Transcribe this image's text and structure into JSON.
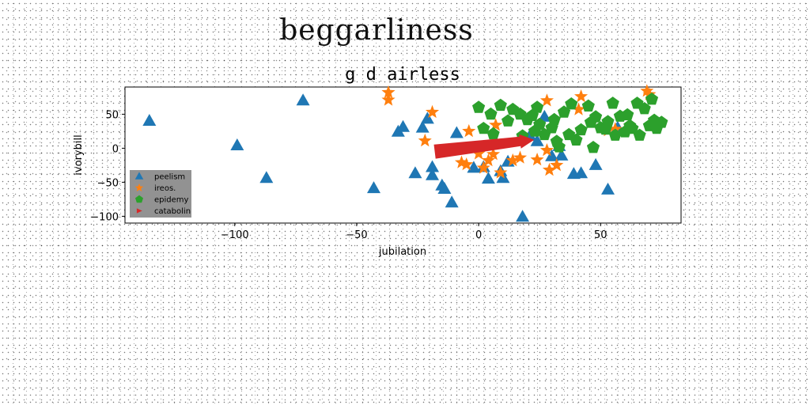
{
  "figure": {
    "suptitle": "beggarliness"
  },
  "chart_data": {
    "type": "scatter",
    "title": "g d airless",
    "xlabel": "jubilation",
    "ylabel": "ivorybill",
    "xlim": [
      -145,
      83
    ],
    "ylim": [
      -110,
      90
    ],
    "xticks": [
      -100,
      -50,
      0,
      50
    ],
    "yticks": [
      50,
      0,
      -50,
      -100
    ],
    "grid": false,
    "legend": {
      "placement": "lower-left",
      "background": "#8c8c8c"
    },
    "series": [
      {
        "name": "peelism",
        "marker": "triangle",
        "color": "#1f77b4",
        "points": [
          [
            -135,
            40
          ],
          [
            -99,
            4
          ],
          [
            -87,
            -44
          ],
          [
            -72,
            70
          ],
          [
            -43,
            -59
          ],
          [
            -33,
            24
          ],
          [
            -31,
            31
          ],
          [
            -26,
            -37
          ],
          [
            -23,
            30
          ],
          [
            -21,
            43
          ],
          [
            -19,
            -28
          ],
          [
            -19,
            -40
          ],
          [
            -15,
            -55
          ],
          [
            -14,
            -60
          ],
          [
            -11,
            -80
          ],
          [
            -9,
            22
          ],
          [
            -2,
            -29
          ],
          [
            2,
            -28
          ],
          [
            4,
            -45
          ],
          [
            9,
            -34
          ],
          [
            10,
            -44
          ],
          [
            12,
            -20
          ],
          [
            18,
            -101
          ],
          [
            21,
            18
          ],
          [
            24,
            10
          ],
          [
            27,
            46
          ],
          [
            30,
            -12
          ],
          [
            33,
            3
          ],
          [
            34,
            -11
          ],
          [
            39,
            -38
          ],
          [
            42,
            -37
          ],
          [
            48,
            -25
          ],
          [
            53,
            -61
          ],
          [
            57,
            30
          ]
        ]
      },
      {
        "name": "ireos.",
        "marker": "star",
        "color": "#ff7f0e",
        "points": [
          [
            -37,
            82
          ],
          [
            -37,
            71
          ],
          [
            -22,
            11
          ],
          [
            -19,
            53
          ],
          [
            -7,
            -21
          ],
          [
            -5,
            -24
          ],
          [
            -4,
            25
          ],
          [
            0,
            -8
          ],
          [
            2,
            -29
          ],
          [
            4,
            -18
          ],
          [
            6,
            -9
          ],
          [
            7,
            34
          ],
          [
            9,
            -36
          ],
          [
            14,
            -18
          ],
          [
            17,
            -14
          ],
          [
            24,
            -17
          ],
          [
            28,
            -3
          ],
          [
            28,
            70
          ],
          [
            29,
            -32
          ],
          [
            32,
            -25
          ],
          [
            41,
            57
          ],
          [
            42,
            76
          ],
          [
            53,
            26
          ],
          [
            56,
            28
          ],
          [
            69,
            84
          ],
          [
            70,
            79
          ]
        ]
      },
      {
        "name": "epidemy",
        "marker": "pentagon",
        "color": "#2ca02c",
        "points": [
          [
            0,
            60
          ],
          [
            2,
            29
          ],
          [
            5,
            50
          ],
          [
            6,
            21
          ],
          [
            9,
            63
          ],
          [
            12,
            40
          ],
          [
            14,
            57
          ],
          [
            17,
            50
          ],
          [
            18,
            18
          ],
          [
            20,
            42
          ],
          [
            22,
            48
          ],
          [
            23,
            25
          ],
          [
            24,
            60
          ],
          [
            25,
            35
          ],
          [
            27,
            20
          ],
          [
            30,
            30
          ],
          [
            31,
            42
          ],
          [
            32,
            10
          ],
          [
            33,
            2
          ],
          [
            35,
            53
          ],
          [
            37,
            20
          ],
          [
            38,
            65
          ],
          [
            40,
            12
          ],
          [
            42,
            27
          ],
          [
            45,
            62
          ],
          [
            46,
            38
          ],
          [
            47,
            1
          ],
          [
            48,
            46
          ],
          [
            50,
            30
          ],
          [
            52,
            28
          ],
          [
            53,
            39
          ],
          [
            55,
            66
          ],
          [
            56,
            19
          ],
          [
            58,
            47
          ],
          [
            60,
            24
          ],
          [
            61,
            49
          ],
          [
            62,
            33
          ],
          [
            63,
            29
          ],
          [
            65,
            66
          ],
          [
            66,
            19
          ],
          [
            68,
            58
          ],
          [
            70,
            33
          ],
          [
            71,
            72
          ],
          [
            72,
            41
          ],
          [
            73,
            29
          ],
          [
            75,
            38
          ]
        ]
      },
      {
        "name": "catabolin",
        "marker": "wedge",
        "color": "#d62728",
        "points": [
          [
            -18,
            -5
          ],
          [
            17,
            10
          ]
        ]
      }
    ]
  }
}
